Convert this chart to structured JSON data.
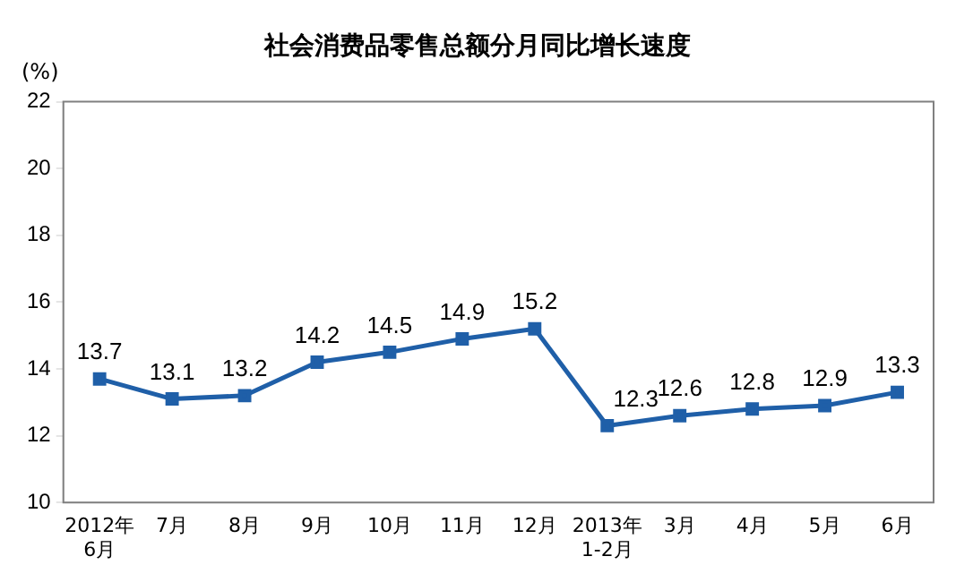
{
  "chart_data": {
    "type": "line",
    "title": "社会消费品零售总额分月同比增长速度",
    "ylabel": "(%)",
    "categories": [
      "2012年\n6月",
      "7月",
      "8月",
      "9月",
      "10月",
      "11月",
      "12月",
      "2013年\n1-2月",
      "3月",
      "4月",
      "5月",
      "6月"
    ],
    "series": [
      {
        "color": "#1f5fa8",
        "values": [
          13.7,
          13.1,
          13.2,
          14.2,
          14.5,
          14.9,
          15.2,
          12.3,
          12.6,
          12.8,
          12.9,
          13.3
        ]
      }
    ],
    "ylim": [
      10,
      22
    ],
    "yticks": [
      10,
      12,
      14,
      16,
      18,
      20,
      22
    ],
    "grid": false,
    "legend": false,
    "marker": "square",
    "line_style": "solid",
    "data_labels": true
  }
}
